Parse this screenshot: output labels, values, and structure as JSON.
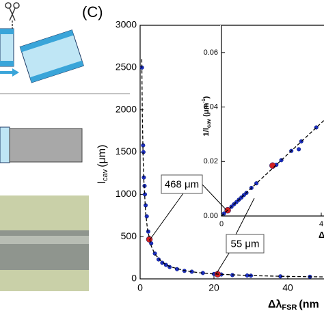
{
  "panel_label": "(C)",
  "chart_data": [
    {
      "type": "scatter",
      "xlabel": {
        "main": "Δλ",
        "sub": "FSR",
        "unit": "(nm"
      },
      "ylabel": {
        "main": "l",
        "sub": "cav",
        "unit": "(μm)"
      },
      "xlim": [
        0,
        50
      ],
      "ylim": [
        0,
        3000
      ],
      "xticks": [
        0,
        20,
        40
      ],
      "yticks": [
        0,
        500,
        1000,
        1500,
        2000,
        2500,
        3000
      ],
      "annotations": [
        "468 μm",
        "55 μm"
      ],
      "series": [
        {
          "color": "#1c2fc4",
          "marker": "dot",
          "x": [
            0.5,
            0.8,
            0.9,
            1,
            1.2,
            1.3,
            1.5,
            1.8,
            2.2,
            2.6,
            3,
            4,
            5,
            6,
            7,
            8,
            10,
            12,
            14,
            17,
            20,
            22,
            25,
            29,
            30,
            38,
            46
          ],
          "values": [
            2500,
            1580,
            1500,
            1200,
            1100,
            1000,
            870,
            740,
            560,
            480,
            420,
            300,
            230,
            190,
            165,
            140,
            115,
            95,
            85,
            70,
            58,
            52,
            45,
            40,
            38,
            30,
            25
          ]
        },
        {
          "color": "#d42020",
          "marker": "big",
          "x": [
            2.5,
            21
          ],
          "values": [
            468,
            55
          ]
        },
        {
          "color": "#000000",
          "marker": "dashed",
          "x": [
            0.45,
            0.6,
            0.8,
            1,
            1.5,
            2,
            3,
            4,
            6,
            8,
            12,
            16,
            20,
            30,
            40,
            50
          ],
          "values": [
            2600,
            1950,
            1462,
            1170,
            780,
            585,
            390,
            292,
            195,
            146,
            97.5,
            73,
            58.5,
            39,
            29,
            23.4
          ]
        }
      ]
    },
    {
      "type": "scatter",
      "xlabel": {
        "main": "Δ"
      },
      "ylabel": {
        "main": "1/l",
        "sub": "cav",
        "unit": "(μm",
        "sup": "-1",
        "close": ")"
      },
      "xlim": [
        0,
        41
      ],
      "ylim": [
        0,
        0.07
      ],
      "xticks": [
        0,
        {
          "value": 40,
          "label": "4"
        }
      ],
      "yticks": [
        {
          "value": 0,
          "label": "0.00"
        },
        {
          "value": 0.02,
          "label": "0.02"
        },
        {
          "value": 0.04,
          "label": "0.04"
        },
        {
          "value": 0.06,
          "label": "0.06"
        }
      ],
      "series": [
        {
          "color": "#1c2fc4",
          "marker": "dot",
          "x": [
            1,
            4,
            5,
            6,
            7,
            8,
            9,
            10,
            12,
            14,
            22,
            24,
            28,
            31,
            32,
            38
          ],
          "values": [
            0.0009,
            0.0034,
            0.0043,
            0.0051,
            0.006,
            0.0068,
            0.0077,
            0.0085,
            0.0103,
            0.012,
            0.0188,
            0.0205,
            0.0239,
            0.0245,
            0.0274,
            0.0325
          ]
        },
        {
          "color": "#d42020",
          "marker": "big",
          "x": [
            2.5,
            20.5
          ],
          "values": [
            0.0021,
            0.0185
          ]
        },
        {
          "color": "#000000",
          "marker": "dashed",
          "x": [
            0,
            41
          ],
          "values": [
            0,
            0.035
          ]
        }
      ]
    }
  ]
}
